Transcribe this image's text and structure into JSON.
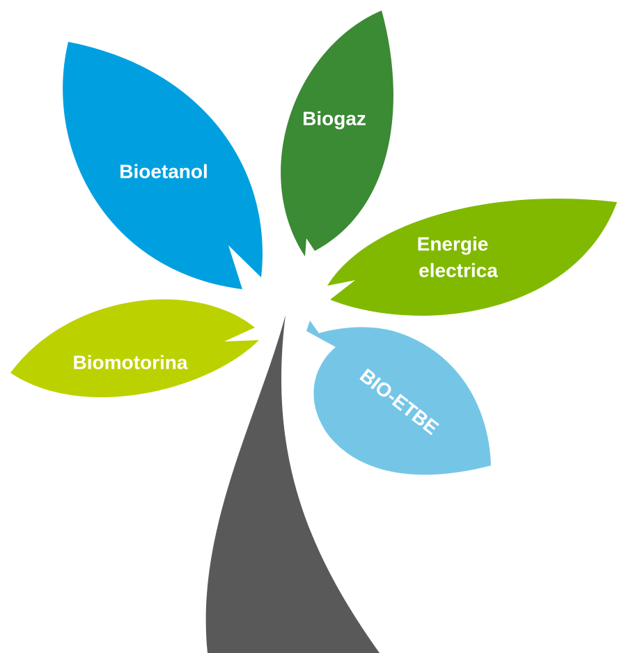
{
  "leaves": [
    {
      "label": "Bioetanol"
    },
    {
      "label": "Biogaz"
    },
    {
      "lines": [
        "Energie",
        "electrica"
      ]
    },
    {
      "label": "Biomotorina"
    },
    {
      "label": "BIO-ETBE"
    }
  ]
}
